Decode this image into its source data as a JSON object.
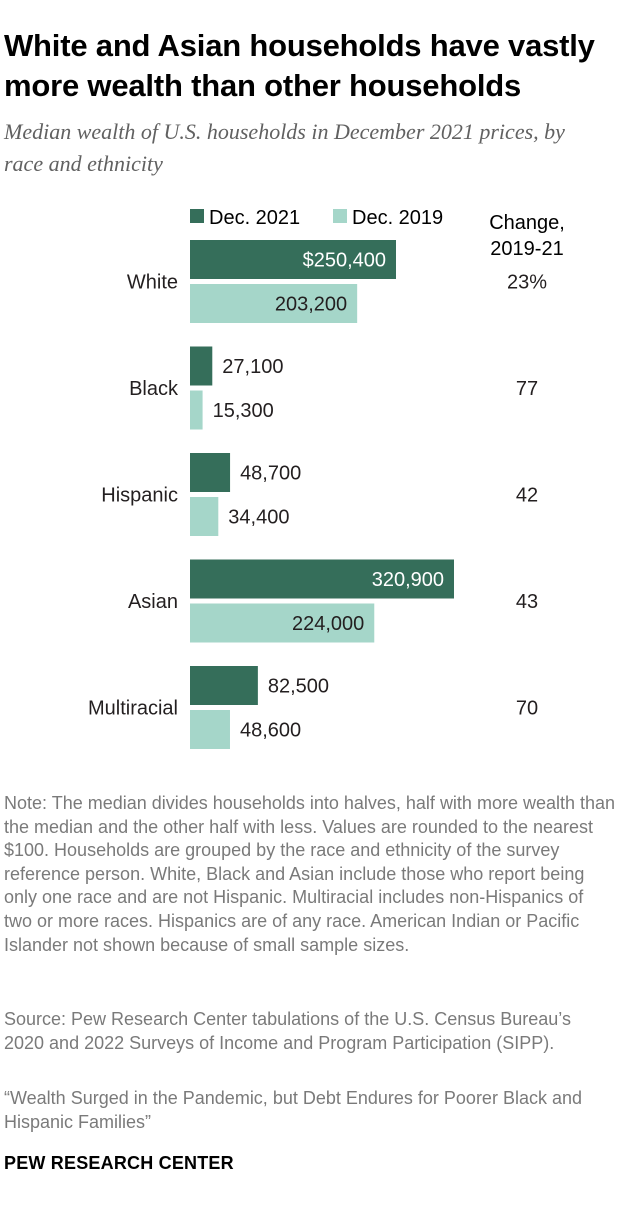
{
  "title": "White and Asian households have vastly more wealth than other households",
  "subtitle": "Median wealth of U.S. households in December 2021 prices, by race and ethnicity",
  "change_header": [
    "Change,",
    "2019-21"
  ],
  "colors": {
    "dec2021": "#356e5a",
    "dec2019": "#a5d6c9",
    "inside_label": "#ffffff",
    "text": "#231f20"
  },
  "chart_data": {
    "type": "bar",
    "orientation": "horizontal",
    "categories": [
      "White",
      "Black",
      "Hispanic",
      "Asian",
      "Multiracial"
    ],
    "series": [
      {
        "name": "Dec. 2021",
        "values": [
          250400,
          27100,
          48700,
          320900,
          82500
        ],
        "labels": [
          "$250,400",
          "27,100",
          "48,700",
          "320,900",
          "82,500"
        ]
      },
      {
        "name": "Dec. 2019",
        "values": [
          203200,
          15300,
          34400,
          224000,
          48600
        ],
        "labels": [
          "203,200",
          "15,300",
          "34,400",
          "224,000",
          "48,600"
        ]
      }
    ],
    "change": [
      "23%",
      "77",
      "42",
      "43",
      "70"
    ],
    "xlim": [
      0,
      320900
    ],
    "legend_position": "top",
    "grid": false
  },
  "note": "Note: The median divides households into halves, half with more wealth than the median and the other half with less. Values are rounded to the nearest $100. Households are grouped by the race and ethnicity of the survey reference person. White, Black and Asian include those who report being only one race and are not Hispanic. Multiracial includes non-Hispanics of two or more races. Hispanics are of any race. American Indian or Pacific Islander not shown because of small sample sizes.",
  "source": "Source: Pew Research Center tabulations of the U.S. Census Bureau’s 2020 and 2022 Surveys of Income and Program Participation (SIPP).",
  "report": "“Wealth Surged in the Pandemic, but Debt Endures for Poorer Black and Hispanic Families”",
  "logo": "PEW RESEARCH CENTER"
}
